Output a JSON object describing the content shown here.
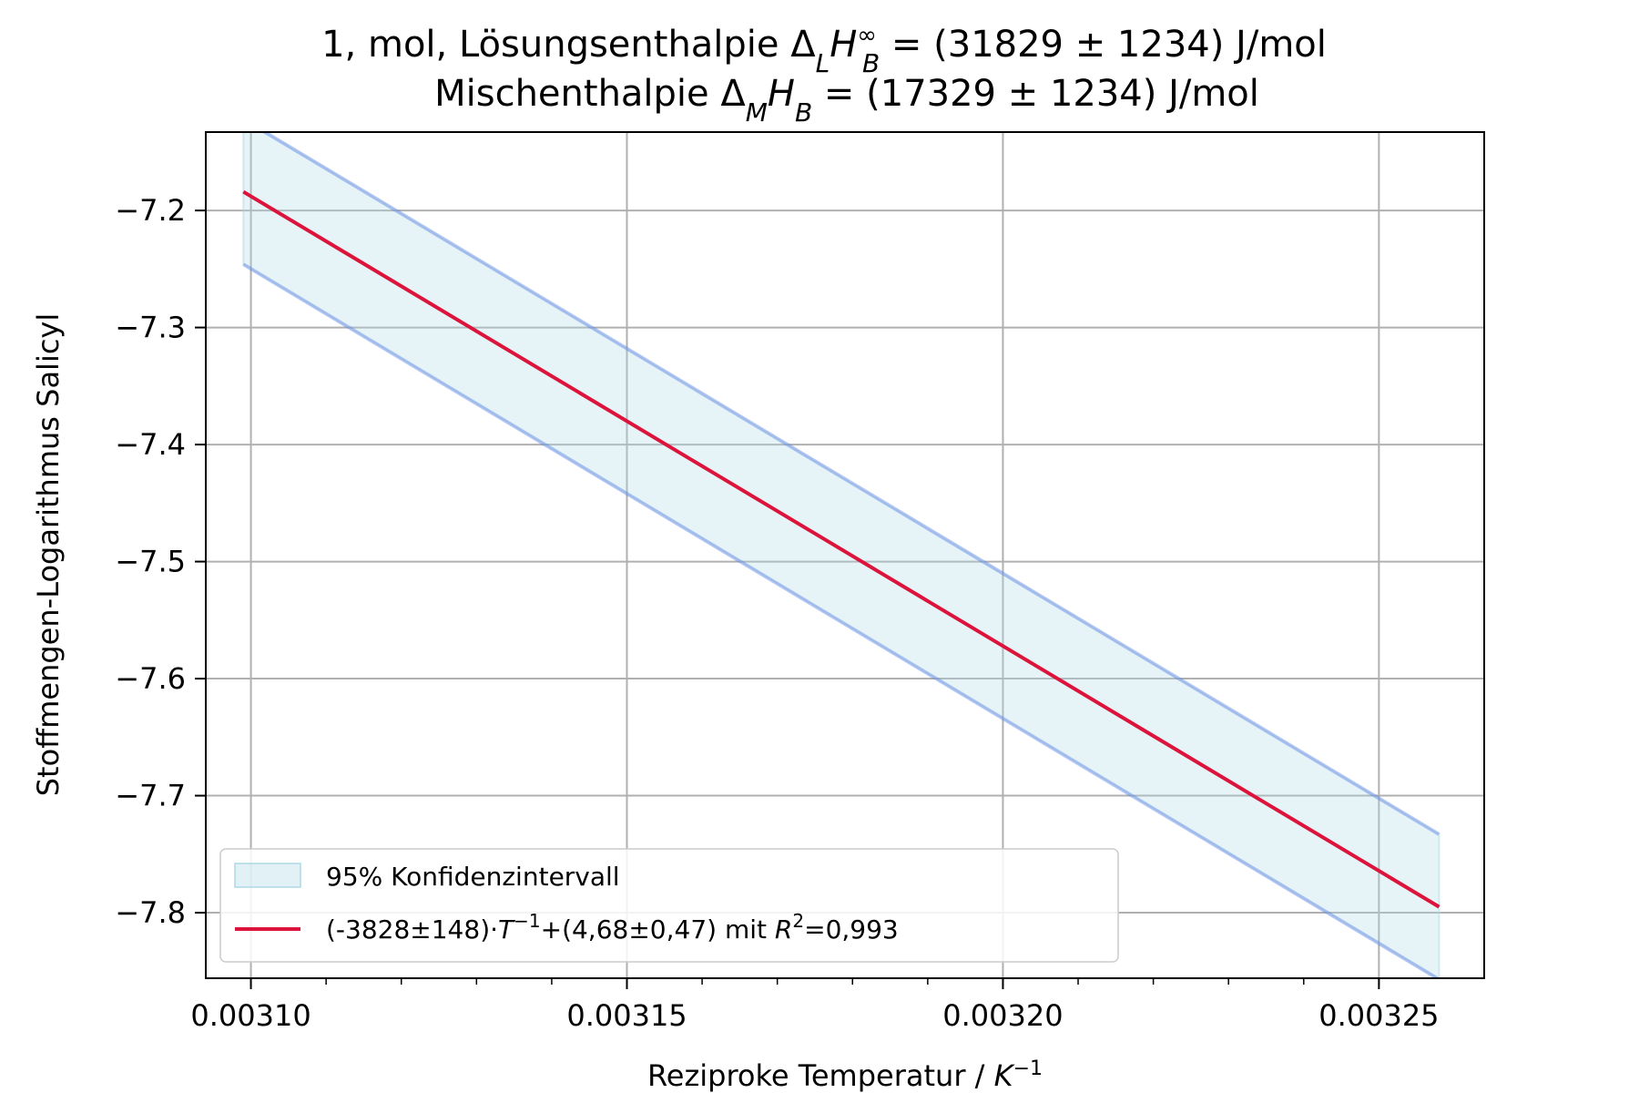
{
  "chart_data": {
    "type": "line",
    "title_line1": "1, mol, Lösungsenthalpie Δ",
    "title_line1_sub": "L",
    "title_line1_H": "H",
    "title_line1_sup": "∞",
    "title_line1_sub2": "B",
    "title_line1_rest": " = (31829 ± 1234) J/mol",
    "title_line2": "Mischenthalpie Δ",
    "title_line2_sub": "M",
    "title_line2_H": "H",
    "title_line2_sub2": "B",
    "title_line2_rest": " =  (17329 ± 1234) J/mol",
    "xlabel_main": "Reziproke Temperatur / ",
    "xlabel_unit": "K",
    "xlabel_sup": "−1",
    "ylabel": "Stoffmengen-Logarithmus Salicyl",
    "xlim": [
      0.003094,
      0.003264
    ],
    "ylim": [
      -7.856,
      -7.133
    ],
    "xticks": [
      0.0031,
      0.00315,
      0.0032,
      0.00325
    ],
    "xtick_labels": [
      "0.00310",
      "0.00315",
      "0.00320",
      "0.00325"
    ],
    "x_minor_ticks": [
      0.0031,
      0.00311,
      0.00312,
      0.00313,
      0.00314,
      0.00315,
      0.00316,
      0.00317,
      0.00318,
      0.00319,
      0.0032,
      0.00321,
      0.00322,
      0.00323,
      0.00324,
      0.00325
    ],
    "yticks": [
      -7.8,
      -7.7,
      -7.6,
      -7.5,
      -7.4,
      -7.3,
      -7.2
    ],
    "ytick_labels": [
      "−7.8",
      "−7.7",
      "−7.6",
      "−7.5",
      "−7.4",
      "−7.3",
      "−7.2"
    ],
    "grid": true,
    "legend_placement": "lower-left",
    "series": [
      {
        "name": "(-3828±148)·T⁻¹+(4,68±0,47) mit R²=0,993",
        "kind": "fit-line",
        "color": "#dc143c",
        "x": [
          0.003099,
          0.003258
        ],
        "y": [
          -7.184,
          -7.795
        ]
      },
      {
        "name": "95% Konfidenzintervall",
        "kind": "band",
        "fill": "#add8e6",
        "edge": "#4169e1",
        "x": [
          0.003099,
          0.003258
        ],
        "y_upper": [
          -7.122,
          -7.733
        ],
        "y_lower": [
          -7.246,
          -7.857
        ]
      }
    ],
    "legend": [
      {
        "label": "95% Konfidenzintervall",
        "kind": "band"
      },
      {
        "label_prefix": "(-3828±148)·",
        "label_T": "T",
        "label_Tsup": "−1",
        "label_mid": "+(4,68±0,47) mit ",
        "label_R": "R",
        "label_Rsup": "2",
        "label_end": "=0,993",
        "kind": "line"
      }
    ]
  }
}
